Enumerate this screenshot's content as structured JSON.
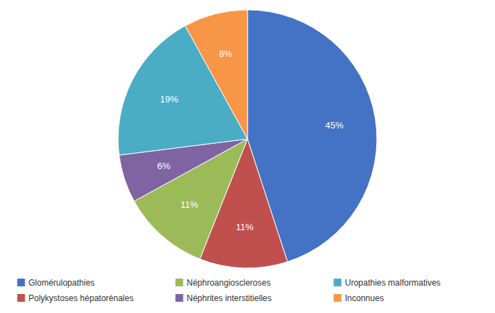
{
  "chart_data": {
    "type": "pie",
    "categories": [
      "Glomérulopathies",
      "Polykystoses hépatorénales",
      "Néphroangioscleroses",
      "Néphrites interstitielles",
      "Uropathies malformatives",
      "Inconnues"
    ],
    "values": [
      45,
      11,
      11,
      6,
      19,
      8
    ],
    "value_labels": [
      "45%",
      "11%",
      "11%",
      "6%",
      "19%",
      "8%"
    ],
    "colors": [
      "#4472C4",
      "#C0504D",
      "#9BBB59",
      "#8064A2",
      "#4BACC6",
      "#F79646"
    ],
    "data_labels": true,
    "legend": "bottom"
  }
}
